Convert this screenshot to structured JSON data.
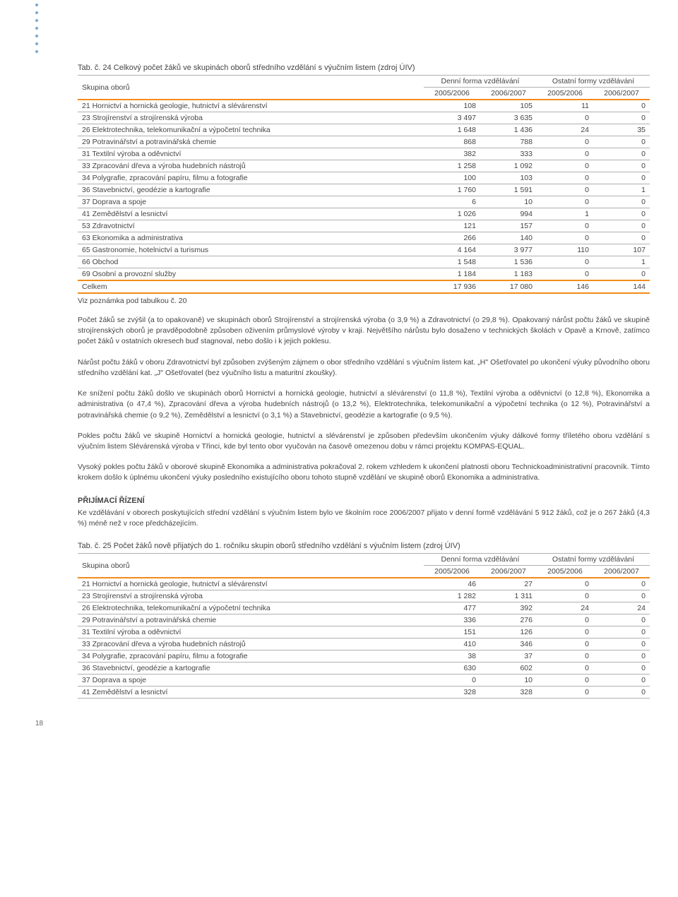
{
  "table24": {
    "title": "Tab. č. 24   Celkový počet žáků ve skupinách oborů středního vzdělání s výučním listem (zdroj ÚIV)",
    "group_label": "Skupina oborů",
    "col_group1": "Denní forma vzdělávání",
    "col_group2": "Ostatní formy vzdělávání",
    "y1": "2005/2006",
    "y2": "2006/2007",
    "y3": "2005/2006",
    "y4": "2006/2007",
    "rows": [
      {
        "label": "21 Hornictví a hornická geologie, hutnictví a slévárenství",
        "c": [
          "108",
          "105",
          "11",
          "0"
        ]
      },
      {
        "label": "23 Strojírenství a strojírenská výroba",
        "c": [
          "3 497",
          "3 635",
          "0",
          "0"
        ]
      },
      {
        "label": "26 Elektrotechnika, telekomunikační a výpočetní technika",
        "c": [
          "1 648",
          "1 436",
          "24",
          "35"
        ]
      },
      {
        "label": "29 Potravinářství a potravinářská chemie",
        "c": [
          "868",
          "788",
          "0",
          "0"
        ]
      },
      {
        "label": "31 Textilní výroba a oděvnictví",
        "c": [
          "382",
          "333",
          "0",
          "0"
        ]
      },
      {
        "label": "33 Zpracování dřeva a výroba hudebních nástrojů",
        "c": [
          "1 258",
          "1 092",
          "0",
          "0"
        ]
      },
      {
        "label": "34 Polygrafie, zpracování papíru, filmu a fotografie",
        "c": [
          "100",
          "103",
          "0",
          "0"
        ]
      },
      {
        "label": "36 Stavebnictví, geodézie a kartografie",
        "c": [
          "1 760",
          "1 591",
          "0",
          "1"
        ]
      },
      {
        "label": "37 Doprava a spoje",
        "c": [
          "6",
          "10",
          "0",
          "0"
        ]
      },
      {
        "label": "41 Zemědělství a lesnictví",
        "c": [
          "1 026",
          "994",
          "1",
          "0"
        ]
      },
      {
        "label": "53 Zdravotnictví",
        "c": [
          "121",
          "157",
          "0",
          "0"
        ]
      },
      {
        "label": "63 Ekonomika a administrativa",
        "c": [
          "266",
          "140",
          "0",
          "0"
        ]
      },
      {
        "label": "65 Gastronomie, hotelnictví a turismus",
        "c": [
          "4 164",
          "3 977",
          "110",
          "107"
        ]
      },
      {
        "label": "66 Obchod",
        "c": [
          "1 548",
          "1 536",
          "0",
          "1"
        ]
      },
      {
        "label": "69 Osobní a provozní služby",
        "c": [
          "1 184",
          "1 183",
          "0",
          "0"
        ]
      }
    ],
    "total": {
      "label": "Celkem",
      "c": [
        "17 936",
        "17 080",
        "146",
        "144"
      ]
    },
    "footnote": "Viz poznámka pod tabulkou č. 20"
  },
  "paragraphs": [
    "Počet žáků se zvýšil (a to opakovaně) ve skupinách oborů Strojírenství a strojírenská výroba (o 3,9 %) a Zdravotnictví (o 29,8 %). Opakovaný nárůst počtu žáků ve skupině strojírenských oborů je pravděpodobně způsoben oživením průmyslové výroby v kraji. Největšího nárůstu bylo dosaženo v technických školách v Opavě a Krnově, zatímco počet žáků v ostatních okresech buď stagnoval, nebo došlo i k jejich poklesu.",
    "Nárůst počtu žáků v oboru Zdravotnictví byl způsoben zvýšeným zájmem o obor středního vzdělání s výučním listem kat. „H\" Ošetřovatel po ukončení výuky původního oboru středního vzdělání kat. „J\" Ošetřovatel (bez výučního listu a maturitní zkoušky).",
    "Ke snížení počtu žáků došlo ve skupinách oborů Hornictví a hornická geologie, hutnictví a slévárenství (o 11,8 %), Textilní výroba a oděvnictví (o 12,8 %), Ekonomika a administrativa (o 47,4 %), Zpracování dřeva a výroba hudebních nástrojů (o 13,2 %), Elektrotechnika, telekomunikační a výpočetní technika (o 12 %), Potravinářství a potravinářská chemie (o 9,2 %), Zemědělství a lesnictví (o 3,1 %) a Stavebnictví, geodézie a kartografie (o 9,5 %).",
    "Pokles počtu žáků ve skupině Hornictví a hornická geologie, hutnictví a slévárenství je způsoben především ukončením výuky dálkové formy tříletého oboru vzdělání s výučním listem Slévárenská výroba v Třinci, kde byl tento obor vyučován na časově omezenou dobu v rámci projektu KOMPAS-EQUAL.",
    "Vysoký pokles počtu žáků v oborové skupině Ekonomika a administrativa pokračoval 2. rokem vzhledem k ukončení platnosti oboru Technickoadministrativní pracovník. Tímto krokem došlo k úplnému ukončení výuky posledního existujícího oboru tohoto stupně vzdělání ve skupině oborů Ekonomika a administrativa."
  ],
  "section_heading": "PŘIJÍMACÍ ŘÍZENÍ",
  "section_intro": "Ke vzdělávání v oborech poskytujících střední vzdělání s výučním listem bylo ve školním roce 2006/2007 přijato v denní formě vzdělávání 5 912 žáků, což je o 267 žáků (4,3 %) méně než v roce předcházejícím.",
  "table25": {
    "title": "Tab. č. 25   Počet žáků nově přijatých do 1. ročníku skupin oborů středního vzdělání s výučním listem (zdroj ÚIV)",
    "group_label": "Skupina oborů",
    "col_group1": "Denní forma vzdělávání",
    "col_group2": "Ostatní formy vzdělávání",
    "y1": "2005/2006",
    "y2": "2006/2007",
    "y3": "2005/2006",
    "y4": "2006/2007",
    "rows": [
      {
        "label": "21 Hornictví a hornická geologie, hutnictví a slévárenství",
        "c": [
          "46",
          "27",
          "0",
          "0"
        ]
      },
      {
        "label": "23 Strojírenství a strojírenská výroba",
        "c": [
          "1 282",
          "1 311",
          "0",
          "0"
        ]
      },
      {
        "label": "26 Elektrotechnika, telekomunikační a výpočetní technika",
        "c": [
          "477",
          "392",
          "24",
          "24"
        ]
      },
      {
        "label": "29 Potravinářství a potravinářská chemie",
        "c": [
          "336",
          "276",
          "0",
          "0"
        ]
      },
      {
        "label": "31 Textilní výroba a oděvnictví",
        "c": [
          "151",
          "126",
          "0",
          "0"
        ]
      },
      {
        "label": "33 Zpracování dřeva a výroba hudebních nástrojů",
        "c": [
          "410",
          "346",
          "0",
          "0"
        ]
      },
      {
        "label": "34 Polygrafie, zpracování papíru, filmu a fotografie",
        "c": [
          "38",
          "37",
          "0",
          "0"
        ]
      },
      {
        "label": "36 Stavebnictví, geodézie a kartografie",
        "c": [
          "630",
          "602",
          "0",
          "0"
        ]
      },
      {
        "label": "37 Doprava a spoje",
        "c": [
          "0",
          "10",
          "0",
          "0"
        ]
      },
      {
        "label": "41 Zemědělství a lesnictví",
        "c": [
          "328",
          "328",
          "0",
          "0"
        ]
      }
    ]
  },
  "page_number": "18",
  "colors": {
    "rule_orange": "#f28c1c",
    "rule_grey": "#b0b0b0",
    "dot_blue": "#7aa9d3",
    "text": "#444444"
  }
}
